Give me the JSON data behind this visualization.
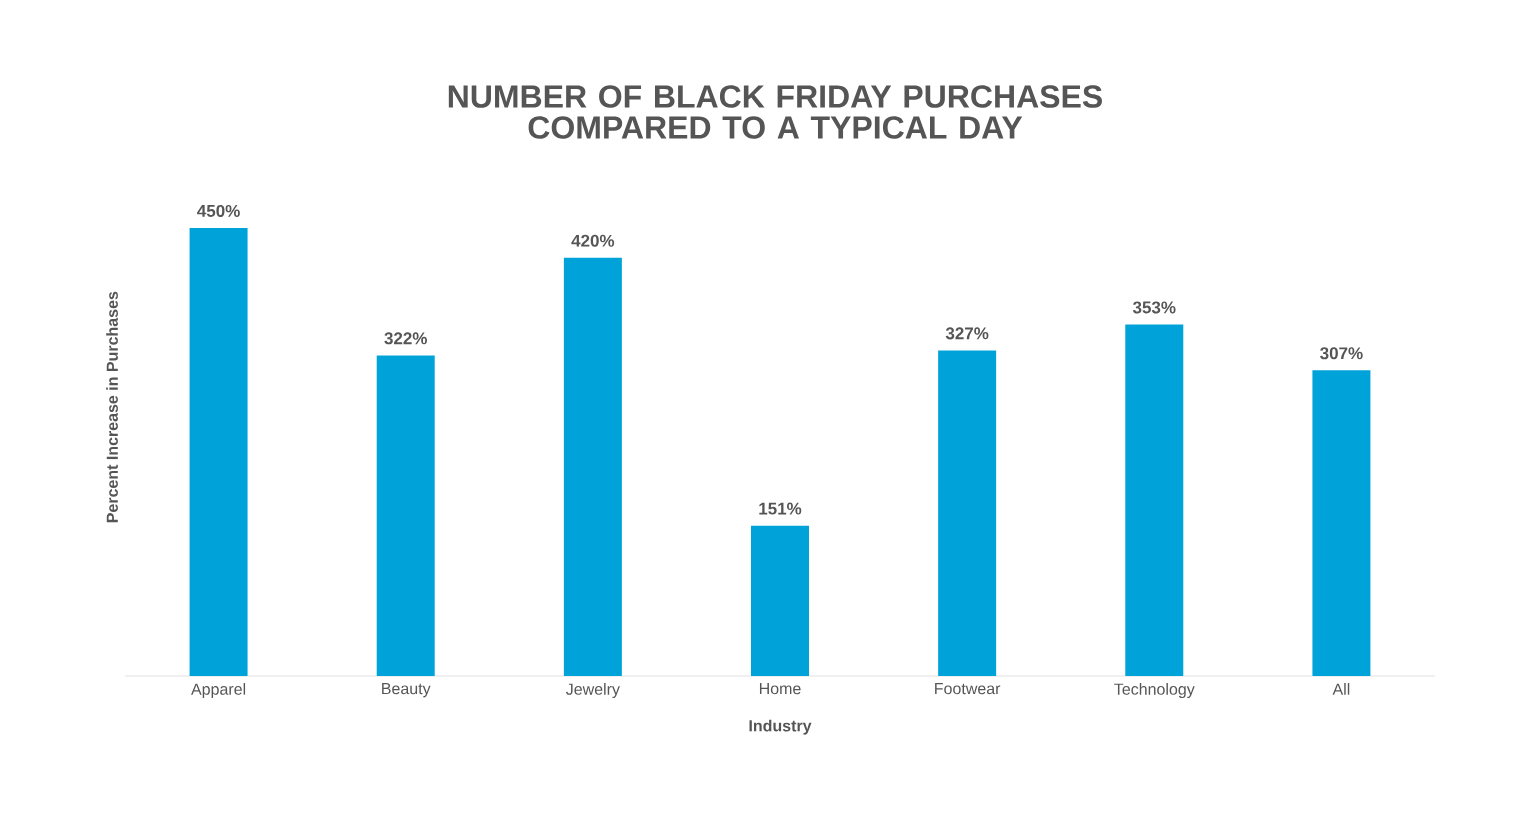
{
  "chart_data": {
    "type": "bar",
    "title": "NUMBER OF BLACK FRIDAY PURCHASES COMPARED TO A TYPICAL DAY",
    "xlabel": "Industry",
    "ylabel": "Percent Increase in Purchases",
    "categories": [
      "Apparel",
      "Beauty",
      "Jewelry",
      "Home",
      "Footwear",
      "Technology",
      "All"
    ],
    "values": [
      450,
      322,
      420,
      151,
      327,
      353,
      307
    ],
    "value_labels": [
      "450%",
      "322%",
      "420%",
      "151%",
      "327%",
      "353%",
      "307%"
    ],
    "color": "#00a3d9"
  }
}
